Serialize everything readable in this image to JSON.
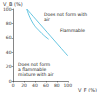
{
  "chart_data": {
    "type": "line",
    "x_label": "V_F (%)",
    "y_label": "V_B (%)",
    "xlim": [
      0,
      100
    ],
    "xticks": [
      0,
      20,
      40,
      60,
      80,
      100
    ],
    "ylim": [
      0,
      100
    ],
    "yticks": [
      0,
      20,
      40,
      60,
      80,
      100
    ],
    "grid": false,
    "annotations": [
      "Does not form with air",
      "Flammable",
      "Does not form a flammable mixture with air"
    ],
    "series": [
      {
        "color": "#3fb6d8",
        "x": [
          25,
          100
        ],
        "values": [
          100,
          35
        ]
      },
      {
        "color": "#3fb6d8",
        "x": [
          25,
          35,
          50,
          65
        ],
        "values": [
          100,
          82,
          68,
          58
        ]
      }
    ]
  }
}
